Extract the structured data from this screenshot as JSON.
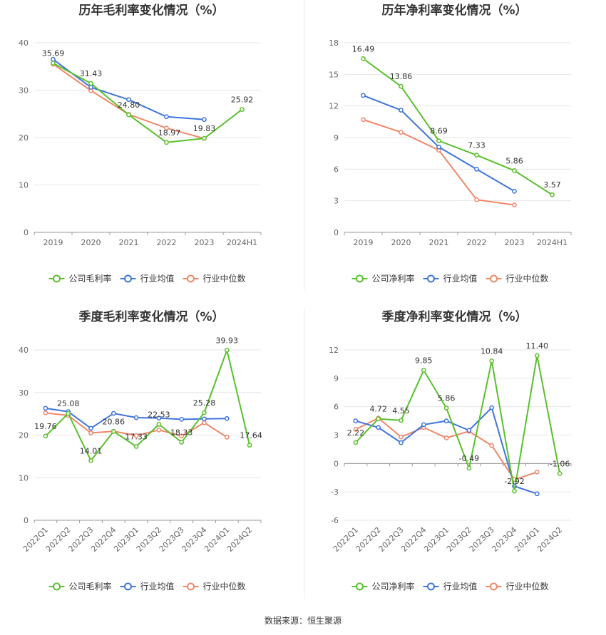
{
  "colors": {
    "company": "#5ac02c",
    "industry_avg": "#3f74dd",
    "industry_median": "#f0876a",
    "grid": "#e6e6e6",
    "axis": "#666666"
  },
  "source": "数据来源：恒生聚源",
  "chart_data": [
    {
      "type": "line",
      "title": "历年毛利率变化情况（%）",
      "categories": [
        "2019",
        "2020",
        "2021",
        "2022",
        "2023",
        "2024H1"
      ],
      "ylim": [
        0,
        40
      ],
      "yticks": [
        0,
        10,
        20,
        30,
        40
      ],
      "grid": true,
      "legend_position": "bottom",
      "series": [
        {
          "name": "公司毛利率",
          "color": "#5ac02c",
          "values": [
            35.69,
            31.43,
            24.8,
            18.97,
            19.83,
            25.92
          ],
          "labels": [
            "35.69",
            "31.43",
            "24.80",
            "18.97",
            "19.83",
            "25.92"
          ]
        },
        {
          "name": "行业均值",
          "color": "#3f74dd",
          "values": [
            36.5,
            30.6,
            28.0,
            24.4,
            23.8,
            null
          ]
        },
        {
          "name": "行业中位数",
          "color": "#f0876a",
          "values": [
            35.5,
            29.9,
            24.9,
            22.0,
            19.8,
            null
          ]
        }
      ]
    },
    {
      "type": "line",
      "title": "历年净利率变化情况（%）",
      "categories": [
        "2019",
        "2020",
        "2021",
        "2022",
        "2023",
        "2024H1"
      ],
      "ylim": [
        0,
        18
      ],
      "yticks": [
        0,
        3,
        6,
        9,
        12,
        15,
        18
      ],
      "grid": true,
      "legend_position": "bottom",
      "series": [
        {
          "name": "公司净利率",
          "color": "#5ac02c",
          "values": [
            16.49,
            13.86,
            8.69,
            7.33,
            5.86,
            3.57
          ],
          "labels": [
            "16.49",
            "13.86",
            "8.69",
            "7.33",
            "5.86",
            "3.57"
          ]
        },
        {
          "name": "行业均值",
          "color": "#3f74dd",
          "values": [
            13.0,
            11.6,
            8.1,
            6.0,
            3.9,
            null
          ]
        },
        {
          "name": "行业中位数",
          "color": "#f0876a",
          "values": [
            10.7,
            9.5,
            7.8,
            3.1,
            2.6,
            null
          ]
        }
      ]
    },
    {
      "type": "line",
      "title": "季度毛利率变化情况（%）",
      "categories": [
        "2022Q1",
        "2022Q2",
        "2022Q3",
        "2022Q4",
        "2023Q1",
        "2023Q2",
        "2023Q3",
        "2023Q4",
        "2024Q1",
        "2024Q2"
      ],
      "ylim": [
        0,
        40
      ],
      "yticks": [
        0,
        10,
        20,
        30,
        40
      ],
      "grid": true,
      "legend_position": "bottom",
      "series": [
        {
          "name": "公司毛利率",
          "color": "#5ac02c",
          "values": [
            19.76,
            25.08,
            14.01,
            20.86,
            17.33,
            22.53,
            18.33,
            25.28,
            39.93,
            17.64
          ],
          "labels": [
            "19.76",
            "25.08",
            "14.01",
            "20.86",
            "17.33",
            "22.53",
            "18.33",
            "25.28",
            "39.93",
            "17.64"
          ]
        },
        {
          "name": "行业均值",
          "color": "#3f74dd",
          "values": [
            26.3,
            25.5,
            21.6,
            25.1,
            24.1,
            24.0,
            23.7,
            23.8,
            23.9,
            null
          ]
        },
        {
          "name": "行业中位数",
          "color": "#f0876a",
          "values": [
            25.2,
            24.6,
            20.5,
            20.9,
            19.9,
            21.2,
            19.8,
            22.9,
            19.5,
            null
          ]
        }
      ]
    },
    {
      "type": "line",
      "title": "季度净利率变化情况（%）",
      "categories": [
        "2022Q1",
        "2022Q2",
        "2022Q3",
        "2022Q4",
        "2023Q1",
        "2023Q2",
        "2023Q3",
        "2023Q4",
        "2024Q1",
        "2024Q2"
      ],
      "ylim": [
        -6,
        12
      ],
      "yticks": [
        -6,
        -3,
        0,
        3,
        6,
        9,
        12
      ],
      "grid": true,
      "legend_position": "bottom",
      "series": [
        {
          "name": "公司净利率",
          "color": "#5ac02c",
          "values": [
            2.22,
            4.72,
            4.55,
            9.85,
            5.86,
            -0.49,
            10.84,
            -2.92,
            11.4,
            -1.06
          ],
          "labels": [
            "2.22",
            "4.72",
            "4.55",
            "9.85",
            "5.86",
            "-0.49",
            "10.84",
            "-2.92",
            "11.40",
            "-1.06"
          ]
        },
        {
          "name": "行业均值",
          "color": "#3f74dd",
          "values": [
            4.5,
            3.8,
            2.2,
            4.1,
            4.5,
            3.5,
            5.9,
            -2.4,
            -3.2,
            null
          ]
        },
        {
          "name": "行业中位数",
          "color": "#f0876a",
          "values": [
            3.6,
            4.8,
            2.8,
            3.8,
            2.7,
            3.4,
            1.9,
            -1.7,
            -0.9,
            null
          ]
        }
      ]
    }
  ]
}
